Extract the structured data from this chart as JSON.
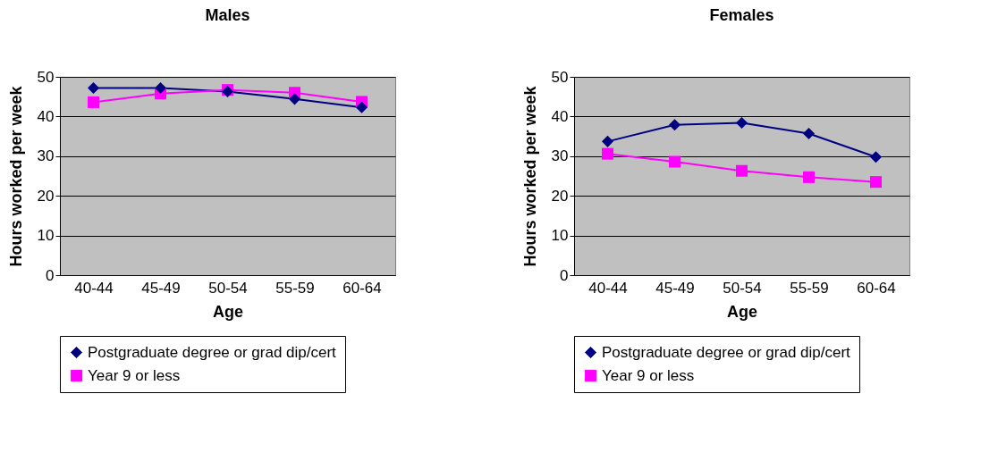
{
  "chart_data": [
    {
      "type": "line",
      "title": "Males",
      "xlabel": "Age",
      "ylabel": "Hours  worked per week",
      "categories": [
        "40-44",
        "45-49",
        "50-54",
        "55-59",
        "60-64"
      ],
      "series": [
        {
          "name": "Postgraduate degree or grad dip/cert",
          "color": "#000080",
          "marker": "diamond",
          "values": [
            47.2,
            47.2,
            46.3,
            44.4,
            42.3
          ]
        },
        {
          "name": "Year 9 or less",
          "color": "#ff00ff",
          "marker": "square",
          "values": [
            43.6,
            45.8,
            46.7,
            46.0,
            43.7
          ]
        }
      ],
      "ylim": [
        0,
        50
      ],
      "yticks": [
        0,
        10,
        20,
        30,
        40,
        50
      ],
      "grid": "y",
      "legend": "bottom"
    },
    {
      "type": "line",
      "title": "Females",
      "xlabel": "Age",
      "ylabel": "Hours worked per week",
      "categories": [
        "40-44",
        "45-49",
        "50-54",
        "55-59",
        "60-64"
      ],
      "series": [
        {
          "name": "Postgraduate degree or grad dip/cert",
          "color": "#000080",
          "marker": "diamond",
          "values": [
            33.7,
            37.9,
            38.4,
            35.7,
            29.8
          ]
        },
        {
          "name": "Year 9 or less",
          "color": "#ff00ff",
          "marker": "square",
          "values": [
            30.6,
            28.6,
            26.3,
            24.7,
            23.5
          ]
        }
      ],
      "ylim": [
        0,
        50
      ],
      "yticks": [
        0,
        10,
        20,
        30,
        40,
        50
      ],
      "grid": "y",
      "legend": "bottom"
    }
  ]
}
